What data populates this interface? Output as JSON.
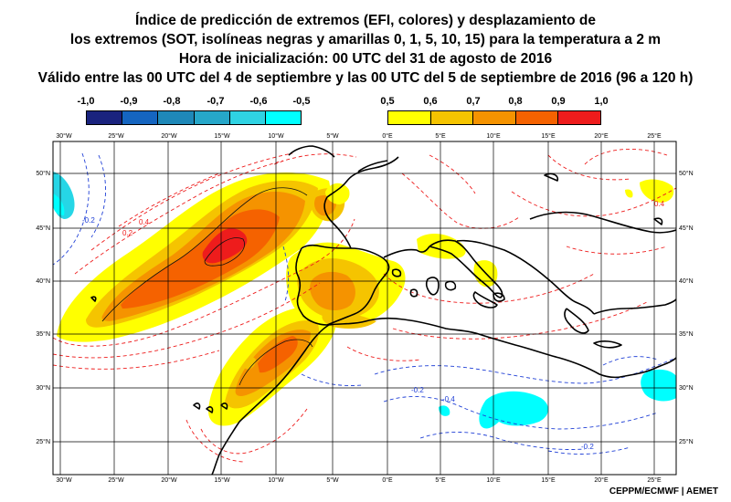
{
  "title": {
    "line1": "Índice de predicción de extremos (EFI, colores) y desplazamiento de",
    "line2": "los extremos (SOT, isolíneas negras y amarillas 0, 1, 5, 10, 15) para la temperatura a 2 m",
    "line3": "Hora de inicialización: 00 UTC del 31 de agosto de 2016",
    "line4": "Válido entre las 00 UTC del 4 de septiembre y las 00 UTC del 5 de septiembre de 2016 (96 a 120 h)"
  },
  "legend": {
    "cold": {
      "labels": [
        "-1,0",
        "-0,9",
        "-0,8",
        "-0,7",
        "-0,6",
        "-0,5"
      ],
      "colors": [
        "#1a237e",
        "#1565c0",
        "#1e88b8",
        "#26a7c9",
        "#2fd3e3",
        "#00ffff"
      ]
    },
    "warm": {
      "labels": [
        "0,5",
        "0,6",
        "0,7",
        "0,8",
        "0,9",
        "1,0"
      ],
      "colors": [
        "#ffff00",
        "#f5c400",
        "#f59300",
        "#f56200",
        "#ee1c1c"
      ]
    }
  },
  "map": {
    "lon_labels": [
      "30°W",
      "25°W",
      "20°W",
      "15°W",
      "10°W",
      "5°W",
      "0°E",
      "5°E",
      "10°E",
      "15°E",
      "20°E",
      "25°E"
    ],
    "lat_labels": [
      "25°N",
      "30°N",
      "35°N",
      "40°N",
      "45°N",
      "50°N"
    ],
    "contour_labels": [
      "0.2",
      "0.4",
      "-0.2",
      "-0.4"
    ],
    "grid_color": "#000000",
    "positive_contour_color": "#ee1c1c",
    "negative_contour_color": "#1f3fd6"
  },
  "credit": "CEPPM/ECMWF | AEMET"
}
